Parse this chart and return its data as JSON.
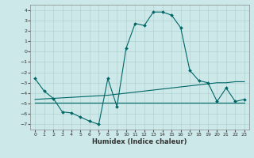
{
  "xlabel": "Humidex (Indice chaleur)",
  "background_color": "#cce8e8",
  "grid_color": "#aacccc",
  "line_color": "#006666",
  "xlim": [
    -0.5,
    23.5
  ],
  "ylim": [
    -7.5,
    4.5
  ],
  "xticks": [
    0,
    1,
    2,
    3,
    4,
    5,
    6,
    7,
    8,
    9,
    10,
    11,
    12,
    13,
    14,
    15,
    16,
    17,
    18,
    19,
    20,
    21,
    22,
    23
  ],
  "yticks": [
    -7,
    -6,
    -5,
    -4,
    -3,
    -2,
    -1,
    0,
    1,
    2,
    3,
    4
  ],
  "line1_x": [
    0,
    1,
    2,
    3,
    4,
    5,
    6,
    7,
    8,
    9,
    10,
    11,
    12,
    13,
    14,
    15,
    16,
    17,
    18,
    19,
    20,
    21,
    22,
    23
  ],
  "line1_y": [
    -2.6,
    -3.8,
    -4.5,
    -5.8,
    -5.9,
    -6.3,
    -6.7,
    -7.0,
    -2.6,
    -5.3,
    0.3,
    2.7,
    2.5,
    3.8,
    3.8,
    3.5,
    2.3,
    -1.8,
    -2.8,
    -3.0,
    -4.8,
    -3.5,
    -4.8,
    -4.6
  ],
  "line2_x": [
    0,
    1,
    2,
    3,
    4,
    5,
    6,
    7,
    8,
    9,
    10,
    11,
    12,
    13,
    14,
    15,
    16,
    17,
    18,
    19,
    20,
    21,
    22,
    23
  ],
  "line2_y": [
    -4.6,
    -4.55,
    -4.5,
    -4.45,
    -4.4,
    -4.35,
    -4.3,
    -4.25,
    -4.2,
    -4.1,
    -4.0,
    -3.9,
    -3.8,
    -3.7,
    -3.6,
    -3.5,
    -3.4,
    -3.3,
    -3.2,
    -3.1,
    -3.0,
    -3.0,
    -2.9,
    -2.9
  ],
  "line3_x": [
    0,
    1,
    2,
    3,
    4,
    5,
    6,
    7,
    8,
    9,
    10,
    11,
    12,
    13,
    14,
    15,
    16,
    17,
    18,
    19,
    20,
    21,
    22,
    23
  ],
  "line3_y": [
    -4.9,
    -4.9,
    -4.9,
    -4.9,
    -4.9,
    -4.9,
    -4.9,
    -4.9,
    -4.9,
    -4.9,
    -4.9,
    -4.9,
    -4.9,
    -4.9,
    -4.9,
    -4.9,
    -4.9,
    -4.9,
    -4.9,
    -4.9,
    -4.9,
    -4.9,
    -4.9,
    -4.9
  ]
}
